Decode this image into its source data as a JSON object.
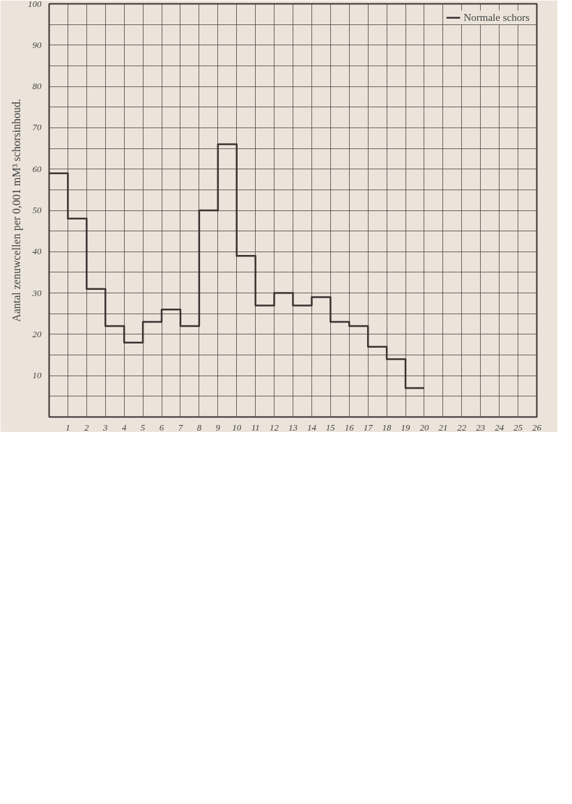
{
  "chart_data": {
    "type": "step",
    "ylabel": "Aantal zenuwcellen per 0,001 mM³ schorsinhoud.",
    "x": [
      0,
      1,
      2,
      3,
      4,
      5,
      6,
      7,
      8,
      9,
      10,
      11,
      12,
      13,
      14,
      15,
      16,
      17,
      18,
      19,
      20
    ],
    "series": [
      {
        "name": "Normale schors",
        "color": "#3a3230",
        "values": [
          59,
          48,
          31,
          22,
          18,
          23,
          26,
          22,
          50,
          66,
          39,
          27,
          30,
          27,
          29,
          23,
          22,
          17,
          14,
          7,
          7
        ]
      }
    ],
    "xlim": [
      0,
      26
    ],
    "ylim": [
      0,
      100
    ],
    "xticks": [
      {
        "value": 0,
        "label": null
      },
      1,
      2,
      3,
      4,
      5,
      6,
      7,
      8,
      9,
      10,
      11,
      12,
      13,
      14,
      15,
      16,
      17,
      18,
      19,
      20,
      21,
      22,
      23,
      24,
      25,
      26
    ],
    "yticks": [
      {
        "value": 5,
        "label": null
      },
      10,
      {
        "value": 15,
        "label": null
      },
      20,
      {
        "value": 25,
        "label": null
      },
      30,
      {
        "value": 35,
        "label": null
      },
      40,
      {
        "value": 45,
        "label": null
      },
      50,
      {
        "value": 55,
        "label": null
      },
      60,
      {
        "value": 65,
        "label": null
      },
      70,
      {
        "value": 75,
        "label": null
      },
      80,
      {
        "value": 85,
        "label": null
      },
      90,
      {
        "value": 95,
        "label": null
      },
      100
    ],
    "grid": true,
    "legend": "top right",
    "line_style": "solid",
    "marker": "none"
  }
}
